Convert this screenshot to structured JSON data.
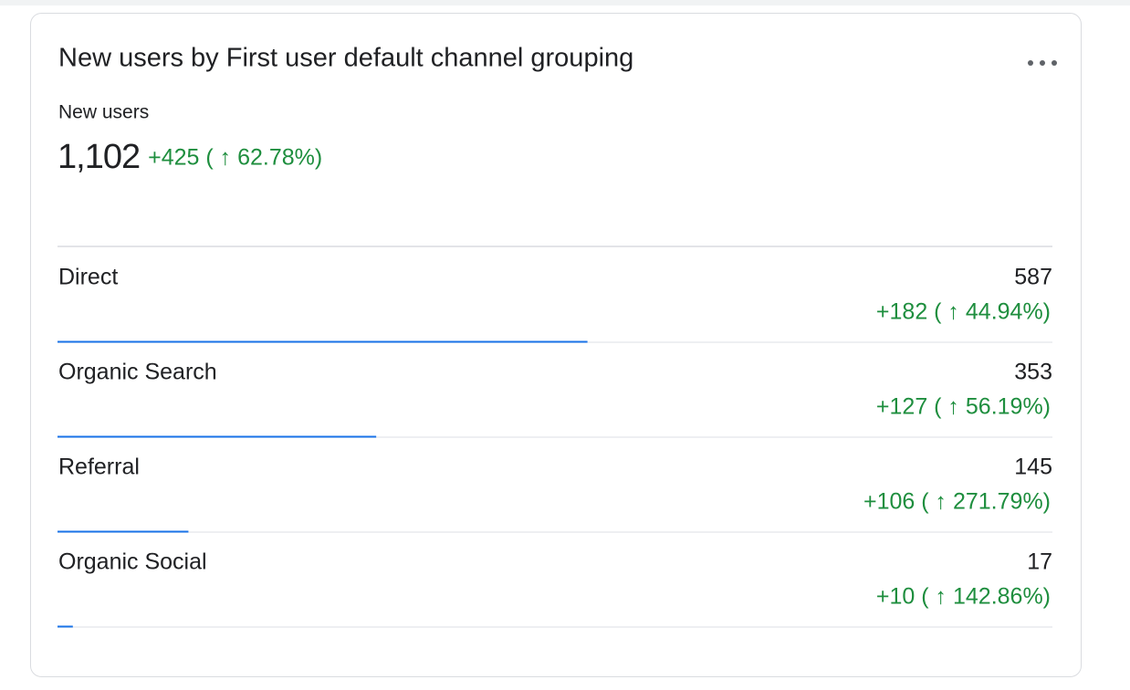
{
  "card": {
    "title": "New users by First user default channel grouping",
    "metric": {
      "label": "New users",
      "total": {
        "value": 1102,
        "label": "1,102"
      },
      "change": "+425 ( ↑ 62.78%)"
    },
    "rows": [
      {
        "name": "Direct",
        "value": 587,
        "change": "+182 ( ↑ 44.94%)"
      },
      {
        "name": "Organic Search",
        "value": 353,
        "change": "+127 ( ↑ 56.19%)"
      },
      {
        "name": "Referral",
        "value": 145,
        "change": "+106 ( ↑ 271.79%)"
      },
      {
        "name": "Organic Social",
        "value": 17,
        "change": "+10 ( ↑ 142.86%)"
      }
    ]
  }
}
